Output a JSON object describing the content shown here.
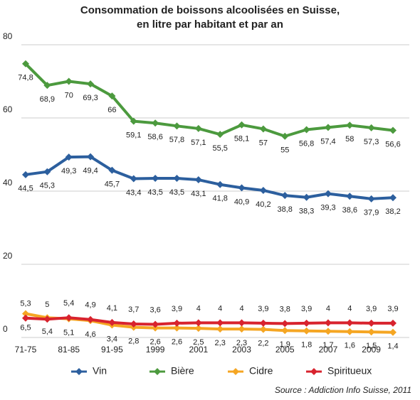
{
  "chart_data": {
    "type": "line",
    "title": "Consommation de boissons alcoolisées en Suisse,",
    "subtitle": "en litre par habitant et par an",
    "source": "Source : Addiction Info Suisse, 2011",
    "categories": [
      "71-75",
      null,
      "81-85",
      null,
      "91-95",
      null,
      "1999",
      null,
      "2001",
      null,
      "2003",
      null,
      "2005",
      null,
      "2007",
      null,
      "2009",
      null
    ],
    "ylim": [
      0,
      80
    ],
    "yticks": [
      0,
      20,
      40,
      60,
      80
    ],
    "grid": true,
    "legend": "bottom",
    "series": [
      {
        "name": "Vin",
        "color": "#2c5f9e",
        "label_side": "below",
        "values": [
          44.5,
          45.3,
          49.3,
          49.4,
          45.7,
          43.4,
          43.5,
          43.5,
          43.1,
          41.8,
          40.9,
          40.2,
          38.8,
          38.3,
          39.3,
          38.6,
          37.9,
          38.2
        ],
        "value_labels": [
          "44,5",
          "45,3",
          "49,3",
          "49,4",
          "45,7",
          "43,4",
          "43,5",
          "43,5",
          "43,1",
          "41,8",
          "40,9",
          "40,2",
          "38,8",
          "38,3",
          "39,3",
          "38,6",
          "37,9",
          "38,2"
        ]
      },
      {
        "name": "Bière",
        "color": "#4c9a3e",
        "label_side": "below",
        "values": [
          74.8,
          68.9,
          70,
          69.3,
          66,
          59.1,
          58.6,
          57.8,
          57.1,
          55.5,
          58.1,
          57,
          55,
          56.8,
          57.4,
          58,
          57.3,
          56.6
        ],
        "value_labels": [
          "74,8",
          "68,9",
          "70",
          "69,3",
          "66",
          "59,1",
          "58,6",
          "57,8",
          "57,1",
          "55,5",
          "58,1",
          "57",
          "55",
          "56,8",
          "57,4",
          "58",
          "57,3",
          "56,6"
        ]
      },
      {
        "name": "Cidre",
        "color": "#f5a623",
        "label_side": "below",
        "values": [
          6.5,
          5.4,
          5.1,
          4.6,
          3.4,
          2.8,
          2.6,
          2.6,
          2.5,
          2.3,
          2.3,
          2.2,
          1.9,
          1.8,
          1.7,
          1.6,
          1.5,
          1.4
        ],
        "value_labels": [
          "6,5",
          "5,4",
          "5,1",
          "4,6",
          "3,4",
          "2,8",
          "2,6",
          "2,6",
          "2,5",
          "2,3",
          "2,3",
          "2,2",
          "1,9",
          "1,8",
          "1,7",
          "1,6",
          "1,5",
          "1,4"
        ]
      },
      {
        "name": "Spiritueux",
        "color": "#d8232e",
        "label_side": "above",
        "values": [
          5.3,
          5,
          5.4,
          4.9,
          4.1,
          3.7,
          3.6,
          3.9,
          4,
          4,
          4,
          3.9,
          3.8,
          3.9,
          4,
          4,
          3.9,
          3.9
        ],
        "value_labels": [
          "5,3",
          "5",
          "5,4",
          "4,9",
          "4,1",
          "3,7",
          "3,6",
          "3,9",
          "4",
          "4",
          "4",
          "3,9",
          "3,8",
          "3,9",
          "4",
          "4",
          "3,9",
          "3,9"
        ]
      }
    ]
  }
}
